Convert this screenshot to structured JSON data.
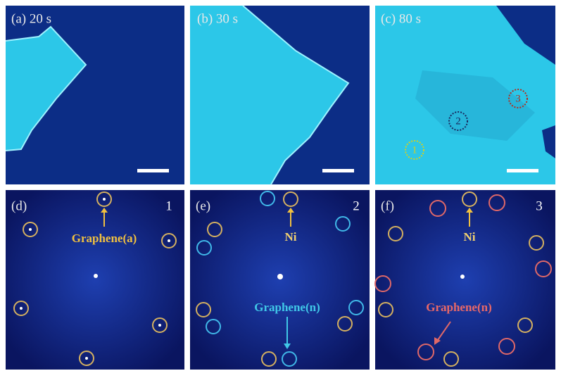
{
  "panels": [
    {
      "label": "(a) 20 s"
    },
    {
      "label": "(b) 30 s"
    },
    {
      "label": "(c) 80 s",
      "markers": [
        "1",
        "2",
        "3"
      ]
    },
    {
      "label": "(d)",
      "number": "1",
      "annotations": [
        "Graphene(a)"
      ]
    },
    {
      "label": "(e)",
      "number": "2",
      "annotations": [
        "Ni",
        "Graphene(n)"
      ]
    },
    {
      "label": "(f)",
      "number": "3",
      "annotations": [
        "Ni",
        "Graphene(n)"
      ]
    }
  ]
}
